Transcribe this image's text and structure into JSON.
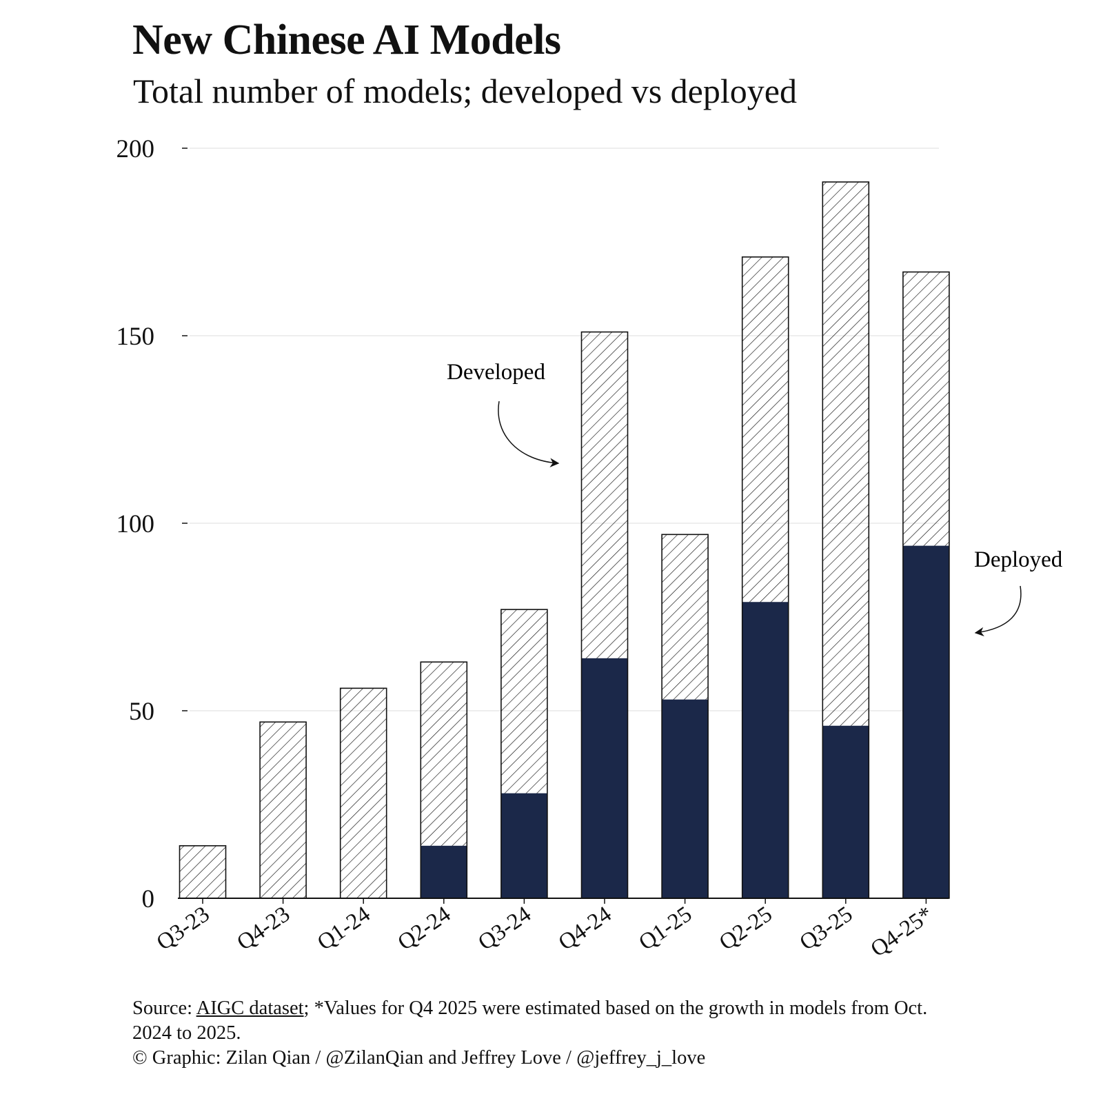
{
  "header": {
    "title": "New Chinese AI Models",
    "subtitle": "Total number of models; developed vs deployed"
  },
  "chart_data": {
    "type": "bar",
    "stacked_overlay": true,
    "categories": [
      "Q3-23",
      "Q4-23",
      "Q1-24",
      "Q2-24",
      "Q3-24",
      "Q4-24",
      "Q1-25",
      "Q2-25",
      "Q3-25",
      "Q4-25*"
    ],
    "series": [
      {
        "name": "Developed",
        "fill": "hatched",
        "values": [
          14,
          47,
          56,
          63,
          77,
          151,
          97,
          171,
          191,
          167
        ]
      },
      {
        "name": "Deployed",
        "fill": "solid",
        "values": [
          0,
          0,
          0,
          14,
          28,
          64,
          53,
          79,
          46,
          94
        ]
      }
    ],
    "ylim": [
      0,
      200
    ],
    "yticks": [
      0,
      50,
      100,
      150,
      200
    ],
    "grid": true,
    "annotations": [
      {
        "text": "Developed",
        "points_to": "Q4-24"
      },
      {
        "text": "Deployed",
        "points_to": "Q4-25*"
      }
    ],
    "colors": {
      "deployed": "#1b2849",
      "grid": "#e3e3e3",
      "stroke": "#111111"
    }
  },
  "footer": {
    "source_prefix": "Source: ",
    "source_link": "AIGC dataset",
    "source_note": "; *Values for Q4 2025 were estimated based on the growth in models from Oct. 2024 to 2025.",
    "credit": "© Graphic: Zilan Qian / @ZilanQian and Jeffrey Love / @jeffrey_j_love"
  }
}
